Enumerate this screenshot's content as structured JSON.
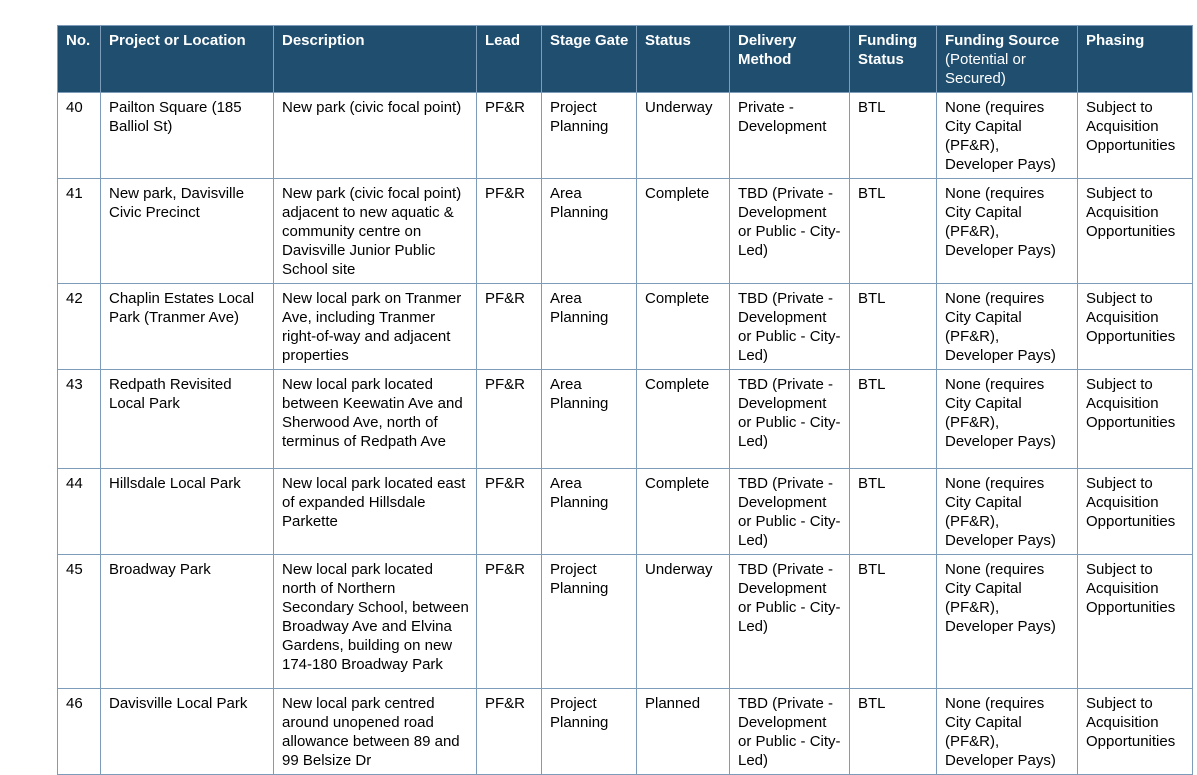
{
  "colors": {
    "header_bg": "#1F4E6E",
    "header_text": "#FFFFFF",
    "border": "#7D9CB9",
    "cell_text": "#000000"
  },
  "table": {
    "headers": [
      {
        "key": "no",
        "label": "No.",
        "sublabel": ""
      },
      {
        "key": "project",
        "label": "Project or Location",
        "sublabel": ""
      },
      {
        "key": "description",
        "label": "Description",
        "sublabel": ""
      },
      {
        "key": "lead",
        "label": "Lead",
        "sublabel": ""
      },
      {
        "key": "stage_gate",
        "label": "Stage Gate",
        "sublabel": ""
      },
      {
        "key": "status",
        "label": "Status",
        "sublabel": ""
      },
      {
        "key": "delivery_method",
        "label": "Delivery Method",
        "sublabel": ""
      },
      {
        "key": "funding_status",
        "label": "Funding Status",
        "sublabel": ""
      },
      {
        "key": "funding_source",
        "label": "Funding Source",
        "sublabel": "(Potential or Secured)"
      },
      {
        "key": "phasing",
        "label": "Phasing",
        "sublabel": ""
      }
    ],
    "rows": [
      {
        "no": "40",
        "project": "Pailton Square (185 Balliol St)",
        "description": "New park (civic focal point)",
        "lead": "PF&R",
        "stage_gate": "Project Planning",
        "status": "Underway",
        "delivery_method": "Private - Development",
        "funding_status": "BTL",
        "funding_source": "None (requires City Capital (PF&R), Developer Pays)",
        "phasing": "Subject to Acquisition Opportunities"
      },
      {
        "no": "41",
        "project": "New park, Davisville Civic Precinct",
        "description": "New park (civic focal point) adjacent to new aquatic & community centre on Davisville Junior Public School site",
        "lead": "PF&R",
        "stage_gate": "Area Planning",
        "status": "Complete",
        "delivery_method": "TBD (Private - Development or Public - City-Led)",
        "funding_status": "BTL",
        "funding_source": "None (requires City Capital (PF&R), Developer Pays)",
        "phasing": "Subject to Acquisition Opportunities"
      },
      {
        "no": "42",
        "project": "Chaplin Estates Local Park (Tranmer Ave)",
        "description": "New local park on Tranmer Ave, including Tranmer right-of-way and adjacent properties",
        "lead": "PF&R",
        "stage_gate": "Area Planning",
        "status": "Complete",
        "delivery_method": "TBD (Private - Development or Public - City-Led)",
        "funding_status": "BTL",
        "funding_source": "None (requires City Capital (PF&R), Developer Pays)",
        "phasing": "Subject to Acquisition Opportunities"
      },
      {
        "no": "43",
        "project": "Redpath Revisited Local Park",
        "description": "New local park located between Keewatin Ave and Sherwood Ave, north of terminus of Redpath Ave",
        "lead": "PF&R",
        "stage_gate": "Area Planning",
        "status": "Complete",
        "delivery_method": "TBD (Private - Development or Public - City-Led)",
        "funding_status": "BTL",
        "funding_source": "None (requires City Capital (PF&R), Developer Pays)",
        "phasing": "Subject to Acquisition Opportunities"
      },
      {
        "no": "44",
        "project": "Hillsdale Local Park",
        "description": "New local park located east of expanded Hillsdale Parkette",
        "lead": "PF&R",
        "stage_gate": "Area Planning",
        "status": "Complete",
        "delivery_method": "TBD (Private - Development or Public - City-Led)",
        "funding_status": "BTL",
        "funding_source": "None (requires City Capital (PF&R), Developer Pays)",
        "phasing": "Subject to Acquisition Opportunities"
      },
      {
        "no": "45",
        "project": "Broadway Park",
        "description": "New local park located north of Northern Secondary School, between Broadway Ave and Elvina Gardens, building on new 174-180 Broadway Park",
        "lead": "PF&R",
        "stage_gate": "Project Planning",
        "status": "Underway",
        "delivery_method": "TBD (Private - Development or Public - City-Led)",
        "funding_status": "BTL",
        "funding_source": "None (requires City Capital (PF&R), Developer Pays)",
        "phasing": "Subject to Acquisition Opportunities"
      },
      {
        "no": "46",
        "project": "Davisville Local Park",
        "description": "New local park centred around unopened road allowance between 89 and 99 Belsize Dr",
        "lead": "PF&R",
        "stage_gate": "Project Planning",
        "status": "Planned",
        "delivery_method": "TBD (Private - Development or Public - City-Led)",
        "funding_status": "BTL",
        "funding_source": "None (requires City Capital (PF&R), Developer Pays)",
        "phasing": "Subject to Acquisition Opportunities"
      }
    ]
  }
}
